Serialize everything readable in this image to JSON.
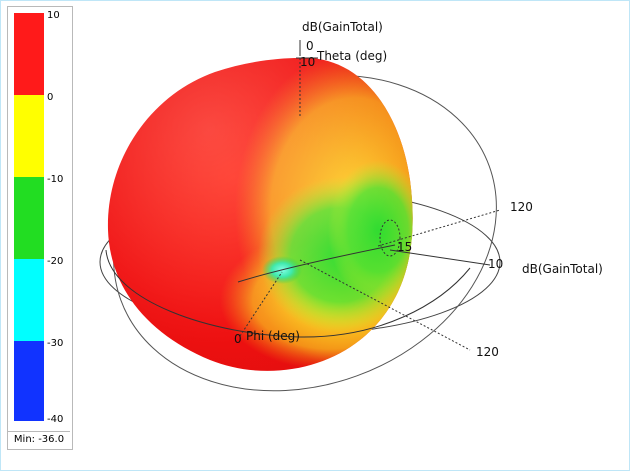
{
  "legend": {
    "ticks": [
      "10",
      "0",
      "-10",
      "-20",
      "-30",
      "-40"
    ],
    "colors": [
      "#ff1a1a",
      "#ffff00",
      "#22dd22",
      "#00ffff",
      "#1133ff"
    ],
    "min_label": "Min: -36.0"
  },
  "plot": {
    "theta_axis_title": "dB(GainTotal)",
    "theta_axis_zero": "0",
    "theta_axis_ten": "10",
    "theta_axis_label": "Theta (deg)",
    "right_axis_title": "dB(GainTotal)",
    "ring_label_upper": "120",
    "ring_label_15": "15",
    "ring_label_10": "10",
    "ring_label_lower": "120",
    "phi_zero": "0",
    "phi_label": "Phi (deg)"
  }
}
